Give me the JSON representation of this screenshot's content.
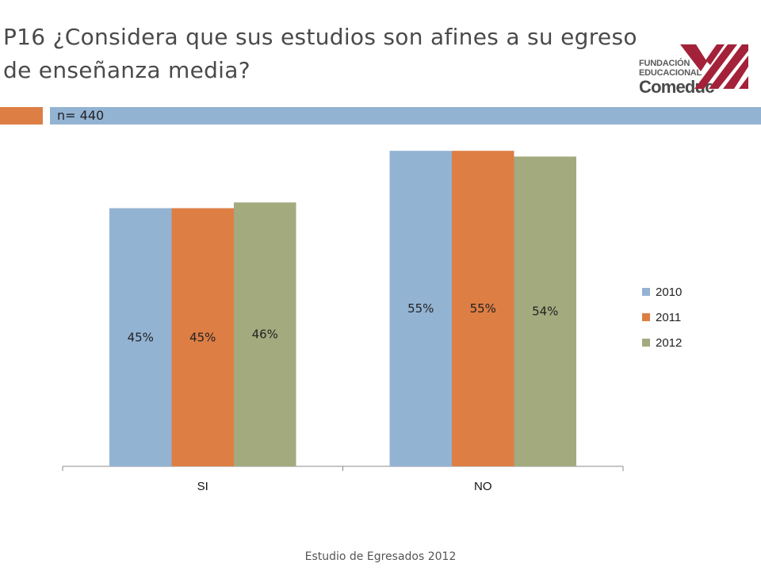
{
  "slide": {
    "title_line1": "P16 ¿Considera que sus estudios son afines a su egreso",
    "title_line2": "de enseñanza media?",
    "sample_label": "n= 440",
    "footer": "Estudio de Egresados 2012",
    "logo": {
      "line1": "FUNDACIÓN",
      "line2": "EDUCACIONAL",
      "line3": "Comeduc",
      "color": "#a3223a"
    }
  },
  "colors": {
    "orange_band": "#dd7e45",
    "blue_band": "#93b3d3"
  },
  "chart_data": {
    "type": "bar",
    "categories": [
      "SI",
      "NO"
    ],
    "series": [
      {
        "name": "2010",
        "values": [
          45,
          55
        ],
        "labels": [
          "45%",
          "55%"
        ],
        "color": "#93b3d3"
      },
      {
        "name": "2011",
        "values": [
          45,
          55
        ],
        "labels": [
          "45%",
          "55%"
        ],
        "color": "#dd7e45"
      },
      {
        "name": "2012",
        "values": [
          46,
          54
        ],
        "labels": [
          "46%",
          "54%"
        ],
        "color": "#a3aa7e"
      }
    ],
    "ylim": [
      0,
      60
    ],
    "grid": false,
    "legend": "right",
    "title": "",
    "xlabel": "",
    "ylabel": ""
  }
}
